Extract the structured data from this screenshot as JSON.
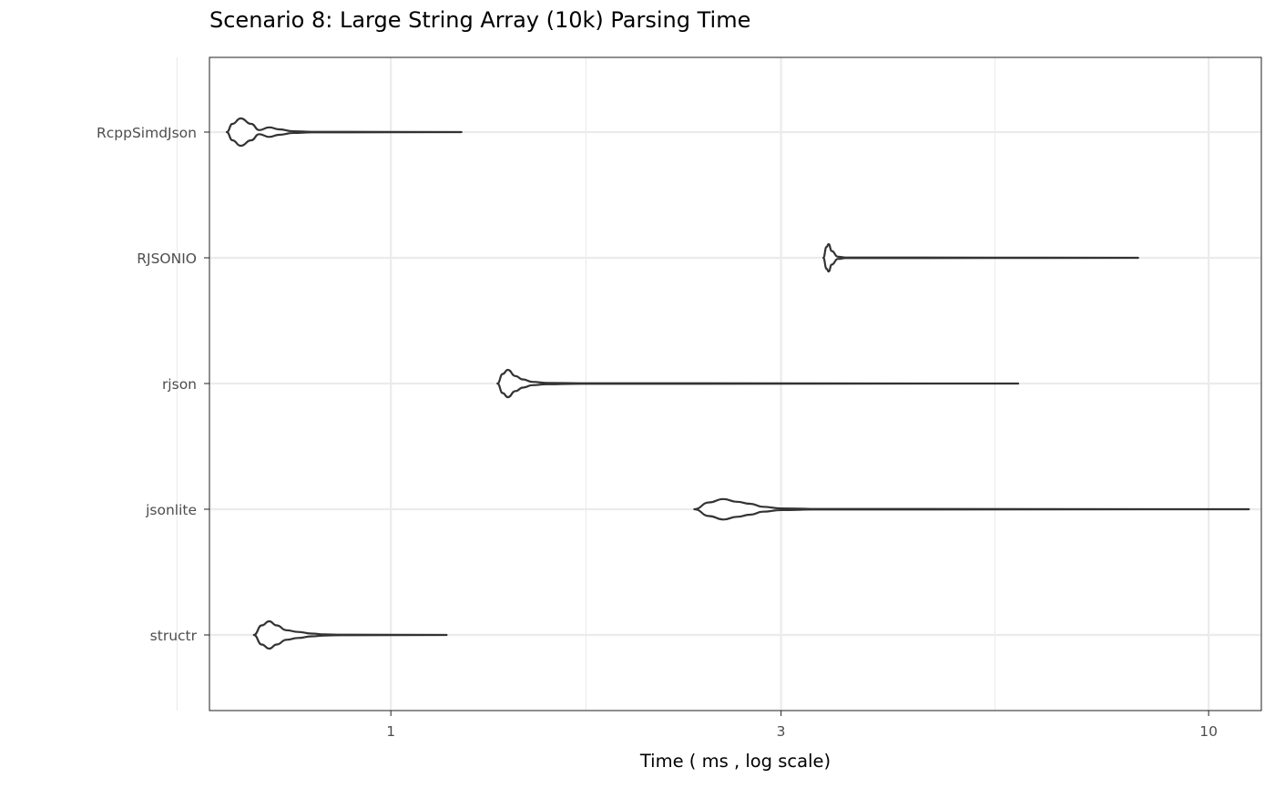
{
  "chart_data": {
    "type": "violin",
    "title": "Scenario 8: Large String Array (10k) Parsing Time",
    "xlabel": "Time ( ms , log scale)",
    "ylabel": "",
    "x_scale": "log10",
    "xlim": [
      0.6,
      11.6
    ],
    "x_ticks": [
      1,
      3,
      10
    ],
    "x_minor_ticks": [
      0.5477,
      1.7321,
      5.4772
    ],
    "grid": true,
    "legend": "none",
    "colors": {
      "outline": "#333333",
      "fill": "#ffffff",
      "grid": "#ebebeb",
      "panel_border": "#333333"
    },
    "categories": [
      "RcppSimdJson",
      "RJSONIO",
      "rjson",
      "jsonlite",
      "structr"
    ],
    "series": [
      {
        "category": "RcppSimdJson",
        "min": 0.63,
        "max": 1.22,
        "density": [
          [
            0.63,
            0.0
          ],
          [
            0.64,
            0.6
          ],
          [
            0.655,
            1.0
          ],
          [
            0.675,
            0.6
          ],
          [
            0.69,
            0.15
          ],
          [
            0.71,
            0.35
          ],
          [
            0.73,
            0.2
          ],
          [
            0.76,
            0.06
          ],
          [
            0.8,
            0.02
          ],
          [
            1.22,
            0.0
          ]
        ]
      },
      {
        "category": "RJSONIO",
        "min": 3.38,
        "max": 8.2,
        "density": [
          [
            3.38,
            0.0
          ],
          [
            3.41,
            0.8
          ],
          [
            3.43,
            1.0
          ],
          [
            3.46,
            0.5
          ],
          [
            3.52,
            0.08
          ],
          [
            3.6,
            0.02
          ],
          [
            8.2,
            0.0
          ]
        ]
      },
      {
        "category": "rjson",
        "min": 1.35,
        "max": 5.85,
        "density": [
          [
            1.35,
            0.0
          ],
          [
            1.37,
            0.7
          ],
          [
            1.39,
            1.0
          ],
          [
            1.42,
            0.55
          ],
          [
            1.45,
            0.3
          ],
          [
            1.49,
            0.12
          ],
          [
            1.55,
            0.05
          ],
          [
            1.7,
            0.02
          ],
          [
            5.85,
            0.0
          ]
        ]
      },
      {
        "category": "jsonlite",
        "min": 2.35,
        "max": 11.2,
        "density": [
          [
            2.35,
            0.0
          ],
          [
            2.45,
            0.5
          ],
          [
            2.55,
            0.75
          ],
          [
            2.65,
            0.55
          ],
          [
            2.75,
            0.4
          ],
          [
            2.85,
            0.18
          ],
          [
            3.0,
            0.06
          ],
          [
            3.3,
            0.02
          ],
          [
            11.2,
            0.0
          ]
        ]
      },
      {
        "category": "structr",
        "min": 0.68,
        "max": 1.17,
        "density": [
          [
            0.68,
            0.0
          ],
          [
            0.695,
            0.7
          ],
          [
            0.71,
            1.0
          ],
          [
            0.725,
            0.7
          ],
          [
            0.745,
            0.35
          ],
          [
            0.77,
            0.22
          ],
          [
            0.8,
            0.1
          ],
          [
            0.83,
            0.04
          ],
          [
            0.87,
            0.02
          ],
          [
            1.17,
            0.0
          ]
        ]
      }
    ]
  }
}
